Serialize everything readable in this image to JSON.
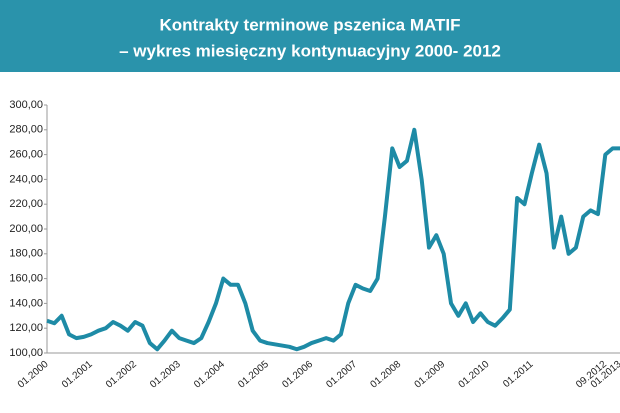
{
  "chart_data": {
    "type": "line",
    "title": "Kontrakty terminowe pszenica MATIF",
    "subtitle": "– wykres miesięczny kontynuacyjny 2000- 2012",
    "categories": [
      "01.2000",
      null,
      null,
      null,
      null,
      null,
      "01.2001",
      null,
      null,
      null,
      null,
      null,
      "01.2002",
      null,
      null,
      null,
      null,
      null,
      "01.2003",
      null,
      null,
      null,
      null,
      null,
      "01.2004",
      null,
      null,
      null,
      null,
      null,
      "01.2005",
      null,
      null,
      null,
      null,
      null,
      "01.2006",
      null,
      null,
      null,
      null,
      null,
      "01.2007",
      null,
      null,
      null,
      null,
      null,
      "01.2008",
      null,
      null,
      null,
      null,
      null,
      "01.2009",
      null,
      null,
      null,
      null,
      null,
      "01.2010",
      null,
      null,
      null,
      null,
      null,
      "01.2011",
      null,
      null,
      null,
      null,
      null,
      null,
      null,
      null,
      null,
      "09.2012",
      null,
      "01.2013"
    ],
    "series": [
      {
        "color": "#1e8ba6",
        "values": [
          126,
          124,
          130,
          115,
          112,
          113,
          115,
          118,
          120,
          125,
          122,
          118,
          125,
          122,
          108,
          103,
          110,
          118,
          112,
          110,
          108,
          112,
          125,
          140,
          160,
          155,
          155,
          140,
          118,
          110,
          108,
          107,
          106,
          105,
          103,
          105,
          108,
          110,
          112,
          110,
          115,
          140,
          155,
          152,
          150,
          160,
          210,
          265,
          250,
          255,
          280,
          240,
          185,
          195,
          180,
          140,
          130,
          140,
          125,
          132,
          125,
          122,
          128,
          135,
          225,
          220,
          245,
          268,
          245,
          185,
          210,
          180,
          185,
          210,
          215,
          212,
          260,
          265,
          265
        ]
      }
    ],
    "ylim": [
      100,
      300
    ],
    "yticks": [
      {
        "value": 100,
        "label": "100,00"
      },
      {
        "value": 120,
        "label": "120,00"
      },
      {
        "value": 140,
        "label": "140,00"
      },
      {
        "value": 160,
        "label": "160,00"
      },
      {
        "value": 180,
        "label": "180,00"
      },
      {
        "value": 200,
        "label": "200,00"
      },
      {
        "value": 220,
        "label": "220,00"
      },
      {
        "value": 240,
        "label": "240,00"
      },
      {
        "value": 260,
        "label": "260,00"
      },
      {
        "value": 280,
        "label": "280,00"
      },
      {
        "value": 300,
        "label": "300,00"
      }
    ]
  }
}
